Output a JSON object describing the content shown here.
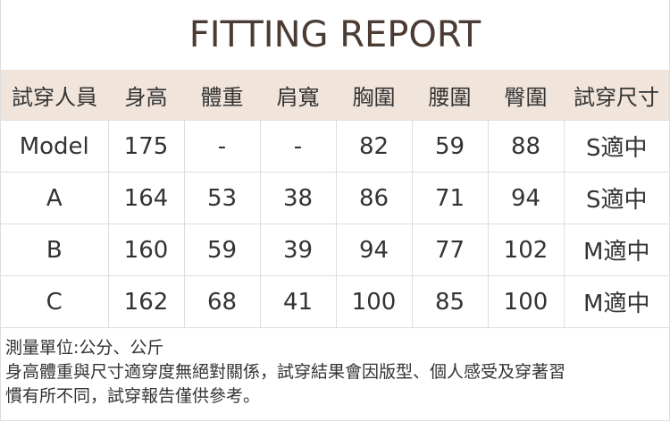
{
  "title": "FITTING REPORT",
  "table": {
    "headers": [
      "試穿人員",
      "身高",
      "體重",
      "肩寬",
      "胸圍",
      "腰圍",
      "臀圍",
      "試穿尺寸"
    ],
    "rows": [
      [
        "Model",
        "175",
        "-",
        "-",
        "82",
        "59",
        "88",
        "S適中"
      ],
      [
        "A",
        "164",
        "53",
        "38",
        "86",
        "71",
        "94",
        "S適中"
      ],
      [
        "B",
        "160",
        "59",
        "39",
        "94",
        "77",
        "102",
        "M適中"
      ],
      [
        "C",
        "162",
        "68",
        "41",
        "100",
        "85",
        "100",
        "M適中"
      ]
    ]
  },
  "notes": [
    "測量單位:公分、公斤",
    "身高體重與尺寸適穿度無絕對關係，試穿結果會因版型、個人感受及穿著習",
    "慣有所不同，試穿報告僅供參考。"
  ],
  "colors": {
    "header_bg": "#f0e4db",
    "title": "#4a3b33"
  }
}
